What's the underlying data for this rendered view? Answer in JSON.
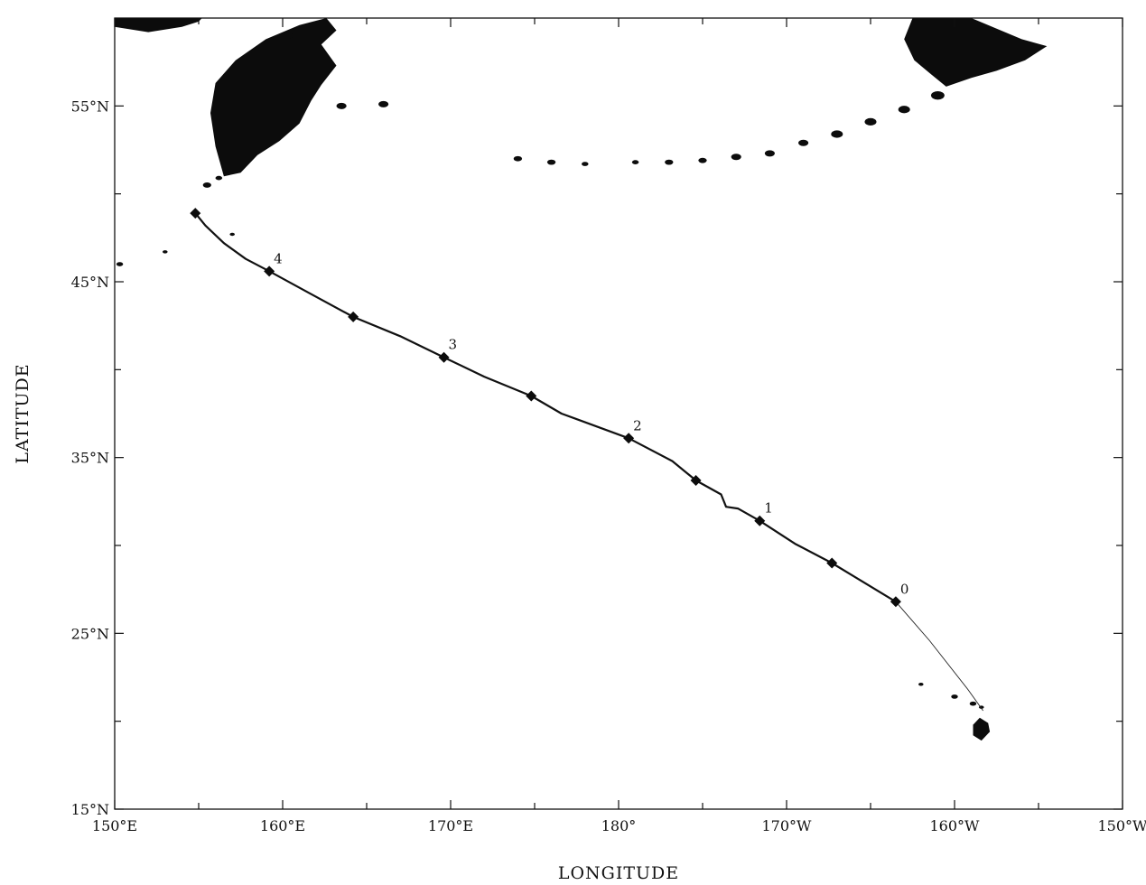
{
  "axes": {
    "xlabel": "LONGITUDE",
    "ylabel": "LATITUDE",
    "x_ticks": [
      {
        "lon": 150,
        "label": "150°E"
      },
      {
        "lon": 160,
        "label": "160°E"
      },
      {
        "lon": 170,
        "label": "170°E"
      },
      {
        "lon": 180,
        "label": "180°"
      },
      {
        "lon": 190,
        "label": "170°W"
      },
      {
        "lon": 200,
        "label": "160°W"
      },
      {
        "lon": 210,
        "label": "150°W"
      }
    ],
    "y_ticks": [
      {
        "lat": 15,
        "label": "15°N"
      },
      {
        "lat": 25,
        "label": "25°N"
      },
      {
        "lat": 35,
        "label": "35°N"
      },
      {
        "lat": 45,
        "label": "45°N"
      },
      {
        "lat": 55,
        "label": "55°N"
      }
    ],
    "x_minor": [
      155,
      165,
      175,
      185,
      195,
      205
    ],
    "y_minor": [
      20,
      30,
      40,
      50
    ],
    "xlim": [
      150,
      210
    ],
    "ylim": [
      15,
      60
    ]
  },
  "track": {
    "line": [
      [
        154.8,
        48.9
      ],
      [
        155.4,
        48.2
      ],
      [
        156.5,
        47.2
      ],
      [
        157.8,
        46.3
      ],
      [
        159.2,
        45.6
      ],
      [
        161.5,
        44.4
      ],
      [
        164.2,
        43.0
      ],
      [
        167.0,
        41.9
      ],
      [
        169.6,
        40.7
      ],
      [
        172.0,
        39.6
      ],
      [
        174.8,
        38.5
      ],
      [
        176.6,
        37.5
      ],
      [
        180.6,
        36.1
      ],
      [
        183.2,
        34.8
      ],
      [
        184.6,
        33.7
      ],
      [
        186.1,
        32.9
      ],
      [
        186.4,
        32.2
      ],
      [
        187.1,
        32.1
      ],
      [
        188.4,
        31.4
      ],
      [
        190.5,
        30.1
      ],
      [
        192.7,
        29.0
      ],
      [
        196.5,
        26.8
      ]
    ],
    "tail": [
      [
        196.5,
        26.8
      ],
      [
        198.5,
        24.6
      ],
      [
        200.8,
        21.8
      ],
      [
        201.7,
        20.6
      ]
    ],
    "markers": [
      {
        "lon": 154.8,
        "lat": 48.9,
        "label": ""
      },
      {
        "lon": 159.2,
        "lat": 45.6,
        "label": "4"
      },
      {
        "lon": 164.2,
        "lat": 43.0,
        "label": ""
      },
      {
        "lon": 169.6,
        "lat": 40.7,
        "label": "3"
      },
      {
        "lon": 174.8,
        "lat": 38.5,
        "label": ""
      },
      {
        "lon": 180.6,
        "lat": 36.1,
        "label": "2"
      },
      {
        "lon": 184.6,
        "lat": 33.7,
        "label": ""
      },
      {
        "lon": 188.4,
        "lat": 31.4,
        "label": "1"
      },
      {
        "lon": 192.7,
        "lat": 29.0,
        "label": ""
      },
      {
        "lon": 196.5,
        "lat": 26.8,
        "label": "0"
      }
    ]
  },
  "land": {
    "kamchatka": [
      [
        156.5,
        51.0
      ],
      [
        156.0,
        52.7
      ],
      [
        155.7,
        54.6
      ],
      [
        156.0,
        56.3
      ],
      [
        157.2,
        57.6
      ],
      [
        159.0,
        58.8
      ],
      [
        161.0,
        59.6
      ],
      [
        162.6,
        60.0
      ],
      [
        163.2,
        59.3
      ],
      [
        162.3,
        58.5
      ],
      [
        163.2,
        57.3
      ],
      [
        162.3,
        56.2
      ],
      [
        161.7,
        55.3
      ],
      [
        161.0,
        54.0
      ],
      [
        159.8,
        53.0
      ],
      [
        158.5,
        52.2
      ],
      [
        157.5,
        51.2
      ]
    ],
    "okhotsk_coast": [
      [
        150.0,
        60.0
      ],
      [
        150.0,
        59.5
      ],
      [
        152.0,
        59.2
      ],
      [
        154.0,
        59.5
      ],
      [
        155.0,
        59.8
      ],
      [
        155.2,
        60.0
      ]
    ],
    "alaska": [
      [
        197.5,
        60.0
      ],
      [
        201.0,
        60.0
      ],
      [
        204.0,
        58.8
      ],
      [
        205.5,
        58.4
      ],
      [
        204.2,
        57.6
      ],
      [
        202.5,
        57.0
      ],
      [
        201.0,
        56.6
      ],
      [
        199.5,
        56.1
      ],
      [
        198.6,
        56.8
      ],
      [
        197.6,
        57.6
      ],
      [
        197.0,
        58.8
      ]
    ],
    "islands": [
      {
        "lon": 155.5,
        "lat": 50.5,
        "r": 0.25
      },
      {
        "lon": 156.2,
        "lat": 50.9,
        "r": 0.2
      },
      {
        "lon": 160.3,
        "lat": 59.0,
        "r": 0.3
      },
      {
        "lon": 163.5,
        "lat": 55.0,
        "r": 0.3
      },
      {
        "lon": 166.0,
        "lat": 55.1,
        "r": 0.3
      },
      {
        "lon": 174.0,
        "lat": 52.0,
        "r": 0.25
      },
      {
        "lon": 176.0,
        "lat": 51.8,
        "r": 0.25
      },
      {
        "lon": 178.0,
        "lat": 51.7,
        "r": 0.2
      },
      {
        "lon": 181.0,
        "lat": 51.8,
        "r": 0.2
      },
      {
        "lon": 183.0,
        "lat": 51.8,
        "r": 0.25
      },
      {
        "lon": 185.0,
        "lat": 51.9,
        "r": 0.25
      },
      {
        "lon": 187.0,
        "lat": 52.1,
        "r": 0.3
      },
      {
        "lon": 189.0,
        "lat": 52.3,
        "r": 0.3
      },
      {
        "lon": 191.0,
        "lat": 52.9,
        "r": 0.3
      },
      {
        "lon": 193.0,
        "lat": 53.4,
        "r": 0.35
      },
      {
        "lon": 195.0,
        "lat": 54.1,
        "r": 0.35
      },
      {
        "lon": 197.0,
        "lat": 54.8,
        "r": 0.35
      },
      {
        "lon": 199.0,
        "lat": 55.6,
        "r": 0.4
      },
      {
        "lon": 157.0,
        "lat": 47.7,
        "r": 0.15
      },
      {
        "lon": 153.0,
        "lat": 46.7,
        "r": 0.15
      },
      {
        "lon": 150.3,
        "lat": 46.0,
        "r": 0.2
      },
      {
        "lon": 198.0,
        "lat": 22.1,
        "r": 0.15
      },
      {
        "lon": 200.0,
        "lat": 21.4,
        "r": 0.2
      },
      {
        "lon": 201.1,
        "lat": 21.0,
        "r": 0.2
      },
      {
        "lon": 201.6,
        "lat": 20.8,
        "r": 0.15
      }
    ],
    "hawaii": [
      [
        201.5,
        20.2
      ],
      [
        202.0,
        19.9
      ],
      [
        202.1,
        19.4
      ],
      [
        201.6,
        18.9
      ],
      [
        201.1,
        19.2
      ],
      [
        201.1,
        19.8
      ]
    ]
  }
}
